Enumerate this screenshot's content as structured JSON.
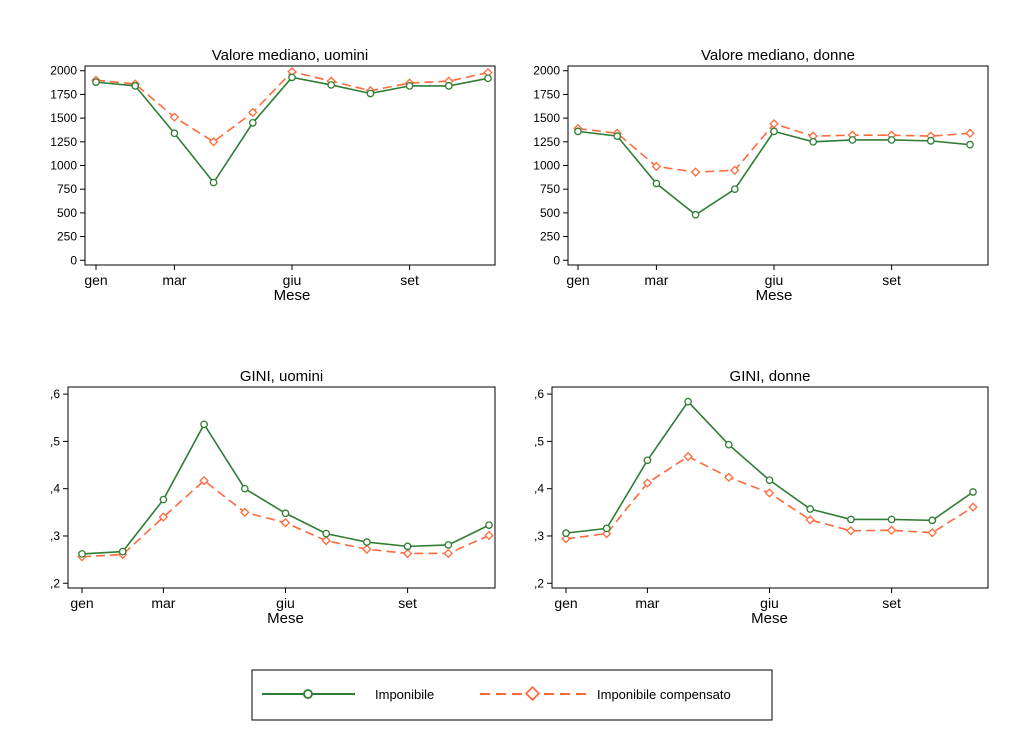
{
  "colors": {
    "series1": "#2f7d32",
    "series2": "#ff6a3d"
  },
  "legend": {
    "items": [
      {
        "label": "Imponibile",
        "marker": "circle",
        "line": "solid",
        "color": "#2f7d32"
      },
      {
        "label": "Imponibile compensato",
        "marker": "diamond",
        "line": "dashed",
        "color": "#ff6a3d"
      }
    ]
  },
  "chart_data": [
    {
      "type": "line",
      "title": "Valore mediano, uomini",
      "xlabel": "Mese",
      "ylabel": "",
      "x": [
        1,
        2,
        3,
        4,
        5,
        6,
        7,
        8,
        9,
        10,
        11,
        12
      ],
      "xticks": [
        {
          "value": 1,
          "label": "gen"
        },
        {
          "value": 3,
          "label": "mar"
        },
        {
          "value": 6,
          "label": "giu"
        },
        {
          "value": 9,
          "label": "set"
        }
      ],
      "yticks": [
        {
          "value": 0,
          "label": "0"
        },
        {
          "value": 250,
          "label": "250"
        },
        {
          "value": 500,
          "label": "500"
        },
        {
          "value": 750,
          "label": "750"
        },
        {
          "value": 1000,
          "label": "1000"
        },
        {
          "value": 1250,
          "label": "1250"
        },
        {
          "value": 1500,
          "label": "1500"
        },
        {
          "value": 1750,
          "label": "1750"
        },
        {
          "value": 2000,
          "label": "2000"
        }
      ],
      "ylim": [
        -50,
        2050
      ],
      "grid": false,
      "series": [
        {
          "name": "Imponibile",
          "values": [
            1880,
            1840,
            1340,
            820,
            1450,
            1930,
            1850,
            1760,
            1840,
            1840,
            1920,
            null
          ]
        },
        {
          "name": "Imponibile compensato",
          "values": [
            1900,
            1860,
            1510,
            1250,
            1560,
            1990,
            1890,
            1790,
            1870,
            1890,
            1980,
            null
          ]
        }
      ]
    },
    {
      "type": "line",
      "title": "Valore mediano, donne",
      "xlabel": "Mese",
      "ylabel": "",
      "x": [
        1,
        2,
        3,
        4,
        5,
        6,
        7,
        8,
        9,
        10,
        11,
        12
      ],
      "xticks": [
        {
          "value": 1,
          "label": "gen"
        },
        {
          "value": 3,
          "label": "mar"
        },
        {
          "value": 6,
          "label": "giu"
        },
        {
          "value": 9,
          "label": "set"
        }
      ],
      "yticks": [
        {
          "value": 0,
          "label": "0"
        },
        {
          "value": 250,
          "label": "250"
        },
        {
          "value": 500,
          "label": "500"
        },
        {
          "value": 750,
          "label": "750"
        },
        {
          "value": 1000,
          "label": "1000"
        },
        {
          "value": 1250,
          "label": "1250"
        },
        {
          "value": 1500,
          "label": "1500"
        },
        {
          "value": 1750,
          "label": "1750"
        },
        {
          "value": 2000,
          "label": "2000"
        }
      ],
      "ylim": [
        -50,
        2050
      ],
      "grid": false,
      "series": [
        {
          "name": "Imponibile",
          "values": [
            1360,
            1310,
            810,
            480,
            750,
            1360,
            1250,
            1270,
            1270,
            1260,
            1220,
            null
          ]
        },
        {
          "name": "Imponibile compensato",
          "values": [
            1390,
            1340,
            990,
            930,
            950,
            1440,
            1310,
            1320,
            1320,
            1310,
            1340,
            null
          ]
        }
      ]
    },
    {
      "type": "line",
      "title": "GINI, uomini",
      "xlabel": "Mese",
      "ylabel": "",
      "x": [
        1,
        2,
        3,
        4,
        5,
        6,
        7,
        8,
        9,
        10,
        11,
        12
      ],
      "xticks": [
        {
          "value": 1,
          "label": "gen"
        },
        {
          "value": 3,
          "label": "mar"
        },
        {
          "value": 6,
          "label": "giu"
        },
        {
          "value": 9,
          "label": "set"
        }
      ],
      "yticks": [
        {
          "value": 0.2,
          "label": ",2"
        },
        {
          "value": 0.3,
          "label": ",3"
        },
        {
          "value": 0.4,
          "label": ",4"
        },
        {
          "value": 0.5,
          "label": ",5"
        },
        {
          "value": 0.6,
          "label": ",6"
        }
      ],
      "ylim": [
        0.19,
        0.615
      ],
      "grid": false,
      "series": [
        {
          "name": "Imponibile",
          "values": [
            0.262,
            0.267,
            0.377,
            0.536,
            0.4,
            0.348,
            0.305,
            0.287,
            0.278,
            0.281,
            0.323,
            null
          ]
        },
        {
          "name": "Imponibile compensato",
          "values": [
            0.256,
            0.261,
            0.34,
            0.417,
            0.35,
            0.328,
            0.29,
            0.272,
            0.263,
            0.263,
            0.301,
            null
          ]
        }
      ]
    },
    {
      "type": "line",
      "title": "GINI, donne",
      "xlabel": "Mese",
      "ylabel": "",
      "x": [
        1,
        2,
        3,
        4,
        5,
        6,
        7,
        8,
        9,
        10,
        11,
        12
      ],
      "xticks": [
        {
          "value": 1,
          "label": "gen"
        },
        {
          "value": 3,
          "label": "mar"
        },
        {
          "value": 6,
          "label": "giu"
        },
        {
          "value": 9,
          "label": "set"
        }
      ],
      "yticks": [
        {
          "value": 0.2,
          "label": ",2"
        },
        {
          "value": 0.3,
          "label": ",3"
        },
        {
          "value": 0.4,
          "label": ",4"
        },
        {
          "value": 0.5,
          "label": ",5"
        },
        {
          "value": 0.6,
          "label": ",6"
        }
      ],
      "ylim": [
        0.19,
        0.615
      ],
      "grid": false,
      "series": [
        {
          "name": "Imponibile",
          "values": [
            0.306,
            0.316,
            0.46,
            0.584,
            0.493,
            0.418,
            0.357,
            0.335,
            0.335,
            0.333,
            0.393,
            null
          ]
        },
        {
          "name": "Imponibile compensato",
          "values": [
            0.294,
            0.305,
            0.412,
            0.468,
            0.424,
            0.391,
            0.334,
            0.311,
            0.312,
            0.307,
            0.361,
            null
          ]
        }
      ]
    }
  ]
}
